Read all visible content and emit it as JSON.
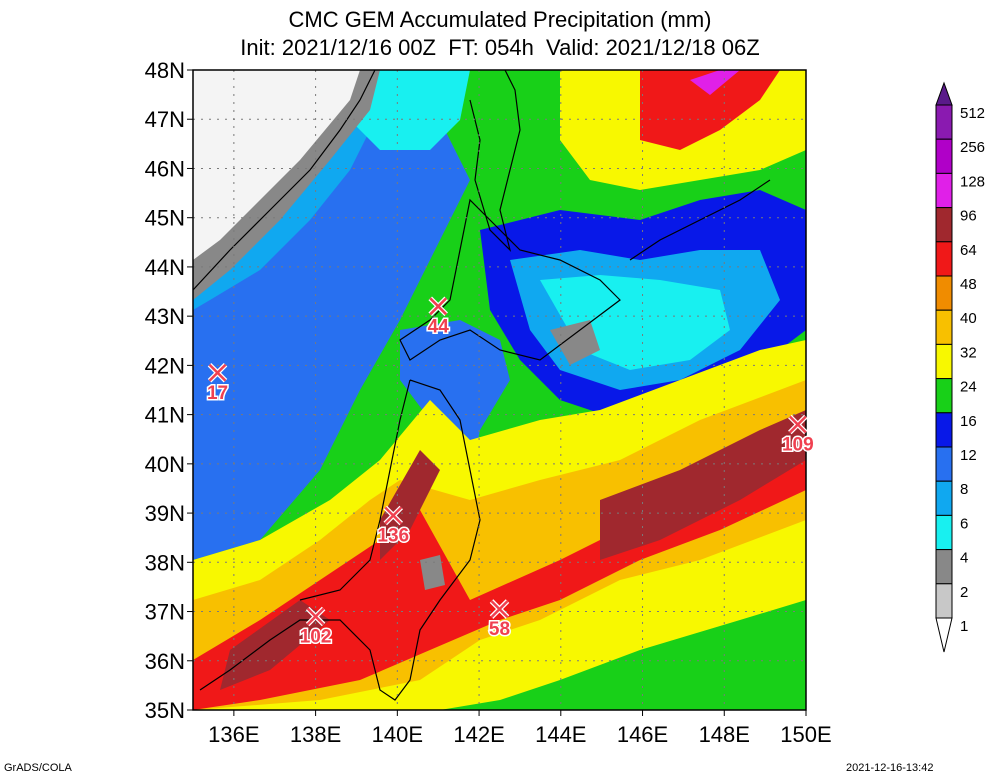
{
  "title": {
    "line1": "CMC GEM Accumulated Precipitation (mm)",
    "line2": "Init: 2021/12/16 00Z  FT: 054h  Valid: 2021/12/18 06Z"
  },
  "map": {
    "lat_labels": [
      "48N",
      "47N",
      "46N",
      "45N",
      "44N",
      "43N",
      "42N",
      "41N",
      "40N",
      "39N",
      "38N",
      "37N",
      "36N",
      "35N"
    ],
    "lon_labels": [
      "136E",
      "138E",
      "140E",
      "142E",
      "144E",
      "146E",
      "148E",
      "150E"
    ],
    "lat_range": [
      35,
      48
    ],
    "lon_range": [
      135,
      150
    ],
    "markers": [
      {
        "name": "marker-17",
        "lon": 135.6,
        "lat": 41.85,
        "label": "17"
      },
      {
        "name": "marker-44",
        "lon": 141.0,
        "lat": 43.2,
        "label": "44"
      },
      {
        "name": "marker-109",
        "lon": 149.8,
        "lat": 40.8,
        "label": "109"
      },
      {
        "name": "marker-136",
        "lon": 139.9,
        "lat": 38.95,
        "label": "136"
      },
      {
        "name": "marker-102",
        "lon": 138.0,
        "lat": 36.9,
        "label": "102"
      },
      {
        "name": "marker-58",
        "lon": 142.5,
        "lat": 37.05,
        "label": "58"
      }
    ]
  },
  "colorbar": {
    "levels": [
      "512",
      "256",
      "128",
      "96",
      "64",
      "48",
      "40",
      "32",
      "24",
      "16",
      "12",
      "8",
      "6",
      "4",
      "2",
      "1"
    ],
    "colors": [
      "#8a1ab0",
      "#b000c8",
      "#e020e8",
      "#a0282e",
      "#f01818",
      "#f08c00",
      "#f8c000",
      "#f8f800",
      "#18d018",
      "#0818e8",
      "#2870f0",
      "#10a8f0",
      "#18f0f0",
      "#888888",
      "#c8c8c8",
      "#ffffff"
    ],
    "top_color": "#5a1a8a"
  },
  "palette": {
    "ocean_bg": "#18d018",
    "heavy": "#f01818",
    "coast": "#000000",
    "marker": "#f04050"
  },
  "footer": {
    "left": "GrADS/COLA",
    "right": "2021-12-16-13:42"
  }
}
